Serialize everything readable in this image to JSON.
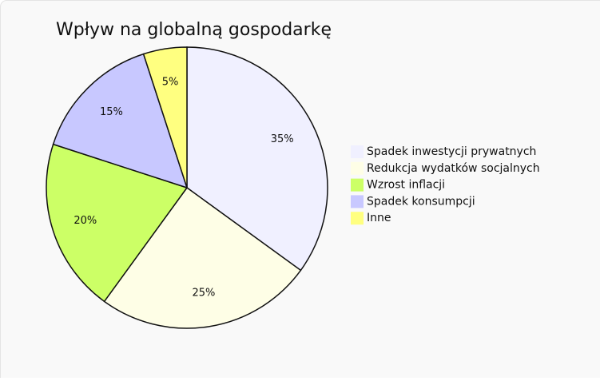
{
  "chart_data": {
    "type": "pie",
    "title": "Wpływ na globalną gospodarkę",
    "categories": [
      "Spadek inwestycji prywatnych",
      "Redukcja wydatków socjalnych",
      "Wzrost inflacji",
      "Spadek konsumpcji",
      "Inne"
    ],
    "values": [
      35,
      25,
      20,
      15,
      5
    ],
    "value_labels": [
      "35%",
      "25%",
      "20%",
      "15%",
      "5%"
    ],
    "colors": [
      "#f0f0ff",
      "#fefee6",
      "#ccff66",
      "#c8c8ff",
      "#ffff80"
    ],
    "legend": "right"
  }
}
